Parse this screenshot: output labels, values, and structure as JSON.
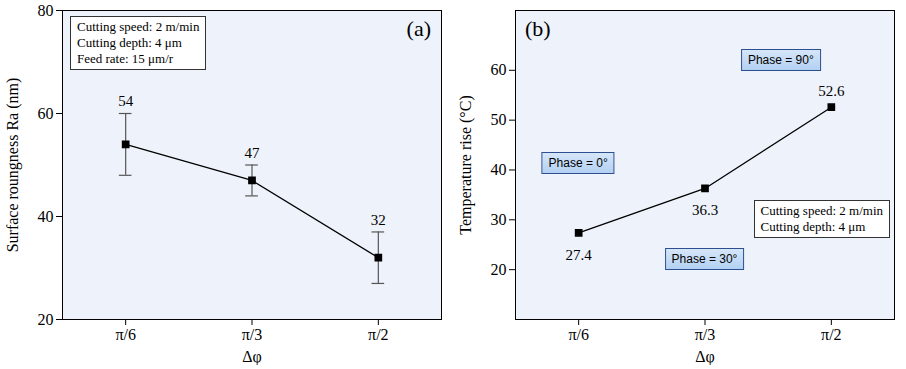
{
  "chart_data": [
    {
      "type": "line",
      "panel_label": "(a)",
      "categories": [
        "π/6",
        "π/3",
        "π/2"
      ],
      "values": [
        54,
        47,
        32
      ],
      "errors": [
        6,
        3,
        5
      ],
      "color": "#000000",
      "marker": "square",
      "x_label": "Δφ",
      "y_label": "Surface roungness Ra (nm)",
      "ylim": [
        20,
        80
      ],
      "yticks": [
        20,
        40,
        60,
        80
      ],
      "data_labels": true,
      "annotations": [
        "Cutting speed: 2 m/min",
        "Cutting depth: 4 μm",
        "Feed rate: 15 μm/r"
      ]
    },
    {
      "type": "line",
      "panel_label": "(b)",
      "categories": [
        "π/6",
        "π/3",
        "π/2"
      ],
      "values": [
        27.4,
        36.3,
        52.6
      ],
      "color": "#000000",
      "marker": "square",
      "x_label": "Δφ",
      "y_label": "Temperature rise (°C)",
      "ylim": [
        10,
        72
      ],
      "yticks": [
        20,
        30,
        40,
        50,
        60
      ],
      "data_labels": true,
      "annotations": [
        "Cutting speed: 2 m/min",
        "Cutting depth: 4 μm"
      ],
      "phase_labels": [
        "Phase = 0°",
        "Phase = 30°",
        "Phase = 90°"
      ]
    }
  ]
}
